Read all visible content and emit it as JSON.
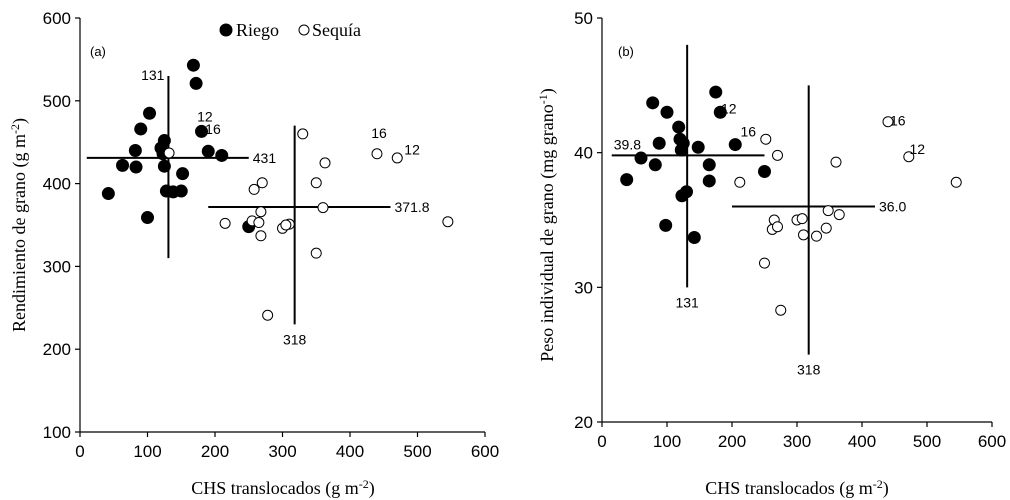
{
  "chart_data": [
    {
      "type": "scatter",
      "panel_label": "(a)",
      "xlabel": "CHS translocados (g m-2)",
      "ylabel": "Rendimiento de grano (g m-2)",
      "xlim": [
        0,
        600
      ],
      "ylim": [
        100,
        600
      ],
      "xticks": [
        0,
        100,
        200,
        300,
        400,
        500,
        600
      ],
      "yticks": [
        100,
        200,
        300,
        400,
        500,
        600
      ],
      "legend": {
        "placement": "top",
        "entries": [
          "Riego",
          "Sequía"
        ]
      },
      "series": [
        {
          "name": "Riego",
          "marker": "filled-circle",
          "points": [
            [
              168,
              543
            ],
            [
              172,
              521
            ],
            [
              103,
              485
            ],
            [
              125,
              452
            ],
            [
              90,
              466
            ],
            [
              180,
              463
            ],
            [
              120,
              443
            ],
            [
              82,
              440
            ],
            [
              190,
              439
            ],
            [
              123,
              436
            ],
            [
              210,
              434
            ],
            [
              125,
              421
            ],
            [
              83,
              420
            ],
            [
              63,
              422
            ],
            [
              152,
              412
            ],
            [
              128,
              391
            ],
            [
              138,
              390
            ],
            [
              150,
              391
            ],
            [
              42,
              388
            ],
            [
              100,
              359
            ],
            [
              250,
              348
            ]
          ]
        },
        {
          "name": "Sequía",
          "marker": "open-circle",
          "points": [
            [
              132,
              437
            ],
            [
              330,
              460
            ],
            [
              440,
              436
            ],
            [
              470,
              431
            ],
            [
              363,
              425
            ],
            [
              270,
              401
            ],
            [
              350,
              401
            ],
            [
              258,
              393
            ],
            [
              268,
              366
            ],
            [
              360,
              371
            ],
            [
              215,
              352
            ],
            [
              255,
              355
            ],
            [
              265,
              353
            ],
            [
              300,
              346
            ],
            [
              310,
              351
            ],
            [
              305,
              350
            ],
            [
              268,
              337
            ],
            [
              545,
              354
            ],
            [
              350,
              316
            ],
            [
              278,
              241
            ]
          ]
        }
      ],
      "reference_lines": [
        {
          "orientation": "horizontal",
          "y": 431,
          "x_from": 10,
          "x_to": 250,
          "label": "431"
        },
        {
          "orientation": "vertical",
          "x": 131,
          "y_from": 310,
          "y_to": 530,
          "label": "131"
        },
        {
          "orientation": "horizontal",
          "y": 371.8,
          "x_from": 190,
          "x_to": 460,
          "label": "371.8"
        },
        {
          "orientation": "vertical",
          "x": 318,
          "y_from": 230,
          "y_to": 470,
          "label": "318"
        }
      ],
      "point_labels": [
        {
          "text": "12",
          "x": 185,
          "y": 475
        },
        {
          "text": "16",
          "x": 197,
          "y": 460
        },
        {
          "text": "16",
          "x": 443,
          "y": 455
        },
        {
          "text": "12",
          "x": 492,
          "y": 435
        }
      ]
    },
    {
      "type": "scatter",
      "panel_label": "(b)",
      "xlabel": "CHS translocados (g m-2)",
      "ylabel": "Peso individual  de grano (mg grano-1)",
      "xlim": [
        0,
        600
      ],
      "ylim": [
        20,
        50
      ],
      "xticks": [
        0,
        100,
        200,
        300,
        400,
        500,
        600
      ],
      "yticks": [
        20,
        30,
        40,
        50
      ],
      "series": [
        {
          "name": "Riego",
          "marker": "filled-circle",
          "points": [
            [
              175,
              44.5
            ],
            [
              78,
              43.7
            ],
            [
              100,
              43.0
            ],
            [
              182,
              43.0
            ],
            [
              118,
              41.9
            ],
            [
              120,
              41.0
            ],
            [
              88,
              40.7
            ],
            [
              125,
              40.7
            ],
            [
              148,
              40.4
            ],
            [
              205,
              40.6
            ],
            [
              122,
              40.2
            ],
            [
              60,
              39.6
            ],
            [
              82,
              39.1
            ],
            [
              165,
              39.1
            ],
            [
              250,
              38.6
            ],
            [
              38,
              38.0
            ],
            [
              165,
              37.9
            ],
            [
              130,
              37.1
            ],
            [
              123,
              36.8
            ],
            [
              98,
              34.6
            ],
            [
              142,
              33.7
            ]
          ]
        },
        {
          "name": "Sequía",
          "marker": "open-circle",
          "points": [
            [
              440,
              42.3
            ],
            [
              252,
              41.0
            ],
            [
              270,
              39.8
            ],
            [
              360,
              39.3
            ],
            [
              472,
              39.7
            ],
            [
              212,
              37.8
            ],
            [
              545,
              37.8
            ],
            [
              265,
              35.0
            ],
            [
              348,
              35.7
            ],
            [
              365,
              35.4
            ],
            [
              300,
              35.0
            ],
            [
              308,
              35.1
            ],
            [
              262,
              34.3
            ],
            [
              270,
              34.5
            ],
            [
              345,
              34.4
            ],
            [
              310,
              33.9
            ],
            [
              330,
              33.8
            ],
            [
              250,
              31.8
            ],
            [
              275,
              28.3
            ]
          ]
        }
      ],
      "reference_lines": [
        {
          "orientation": "horizontal",
          "y": 39.8,
          "x_from": 15,
          "x_to": 250,
          "label": "39.8"
        },
        {
          "orientation": "vertical",
          "x": 131,
          "y_from": 30,
          "y_to": 48,
          "label": "131"
        },
        {
          "orientation": "horizontal",
          "y": 36.0,
          "x_from": 200,
          "x_to": 420,
          "label": "36.0"
        },
        {
          "orientation": "vertical",
          "x": 318,
          "y_from": 25,
          "y_to": 45,
          "label": "318"
        }
      ],
      "point_labels": [
        {
          "text": "12",
          "x": 195,
          "y": 42.9
        },
        {
          "text": "16",
          "x": 225,
          "y": 41.2
        },
        {
          "text": "16",
          "x": 455,
          "y": 42.0
        },
        {
          "text": "12",
          "x": 485,
          "y": 39.9
        }
      ]
    }
  ]
}
